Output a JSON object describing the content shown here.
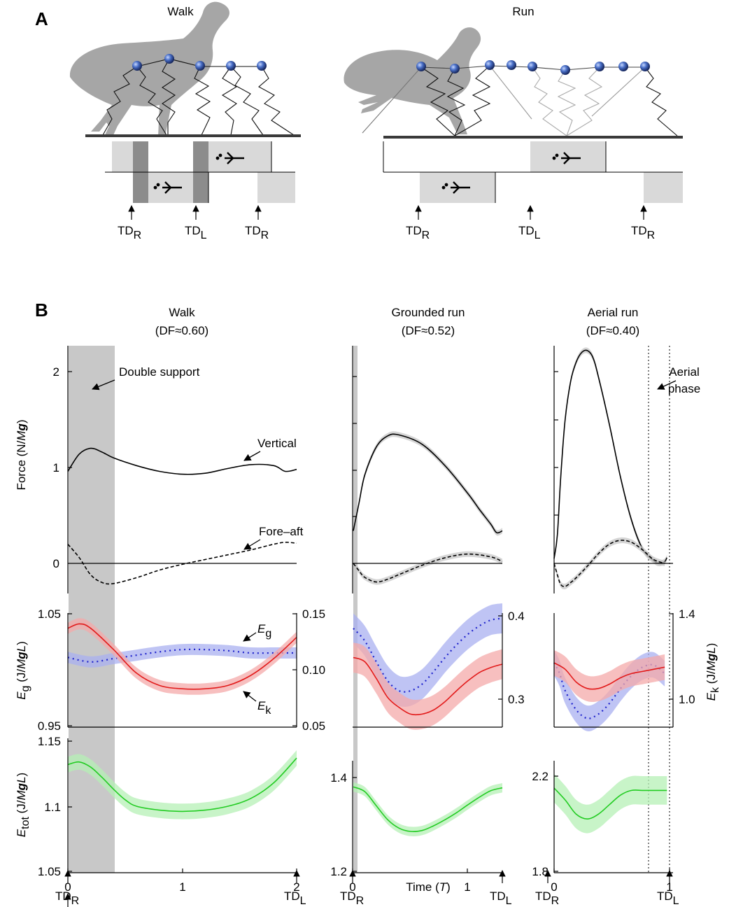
{
  "panel_a": {
    "label": "A",
    "walk": {
      "title": "Walk",
      "markers": [
        {
          "main": "TD",
          "sub": "R"
        },
        {
          "main": "TD",
          "sub": "L"
        },
        {
          "main": "TD",
          "sub": "R"
        }
      ]
    },
    "run": {
      "title": "Run",
      "markers": [
        {
          "main": "TD",
          "sub": "R"
        },
        {
          "main": "TD",
          "sub": "L"
        },
        {
          "main": "TD",
          "sub": "R"
        }
      ]
    }
  },
  "panel_b": {
    "label": "B",
    "columns": [
      {
        "title": "Walk",
        "subtitle": "(DF≈0.60)"
      },
      {
        "title": "Grounded run",
        "subtitle": "(DF≈0.52)"
      },
      {
        "title": "Aerial run",
        "subtitle": "(DF≈0.40)"
      }
    ],
    "annotations": {
      "double_support": "Double support",
      "vertical": "Vertical",
      "fore_aft": "Fore–aft",
      "aerial_phase_1": "Aerial",
      "aerial_phase_2": "phase",
      "eg_main": "E",
      "eg_sub": "g",
      "ek_main": "E",
      "ek_sub": "k"
    },
    "axis_labels": {
      "force": {
        "prefix": "Force (N/",
        "italic": "M",
        "bold_italic": "g",
        "suffix": ")"
      },
      "eg": {
        "main": "E",
        "sub": "g",
        "rest_prefix": " (J/",
        "italic": "M",
        "bold_italic": "g",
        "italic2": "L",
        "suffix": ")"
      },
      "ek": {
        "main": "E",
        "sub": "k",
        "rest_prefix": " (J/",
        "italic": "M",
        "bold_italic": "g",
        "italic2": "L",
        "suffix": ")"
      },
      "etot": {
        "main": "E",
        "sub": "tot",
        "rest_prefix": " (J/",
        "italic": "M",
        "bold_italic": "g",
        "italic2": "L",
        "suffix": ")"
      },
      "time": {
        "prefix": "Time (",
        "italic": "T",
        "suffix": ")"
      }
    },
    "bottom_markers": [
      {
        "main": "TD",
        "sub": "R"
      },
      {
        "main": "TD",
        "sub": "L"
      },
      {
        "main": "TD",
        "sub": "R"
      },
      {
        "main": "TD",
        "sub": "L"
      },
      {
        "main": "TD",
        "sub": "R"
      },
      {
        "main": "TD",
        "sub": "L"
      }
    ]
  },
  "colors": {
    "black": "#000000",
    "ek_red": "#e21b1b",
    "ek_band": "#f4a9a9",
    "eg_blue": "#1f23cc",
    "eg_band": "#aab0f0",
    "etot_green": "#22cc22",
    "etot_band": "#b6f0b6",
    "shade": "#c8c8c8",
    "silhouette": "#a6a6a6",
    "node": "#4a70c8"
  },
  "chart_data": [
    {
      "type": "line",
      "id": "walk_force",
      "ylabel": "Force (N/Mg)",
      "xlim": [
        0,
        2
      ],
      "ylim": [
        -0.2,
        2.3
      ],
      "yticks": [
        "0",
        "1",
        "2"
      ],
      "ytick_values": [
        0,
        1,
        2
      ],
      "x_range": [
        0,
        2
      ],
      "shaded_x": [
        0,
        0.4
      ],
      "series": [
        {
          "name": "Vertical",
          "style": "solid",
          "x": [
            0,
            0.1,
            0.2,
            0.3,
            0.4,
            0.6,
            0.8,
            1.0,
            1.2,
            1.4,
            1.6,
            1.8,
            1.9,
            2.0
          ],
          "y": [
            0.96,
            1.14,
            1.2,
            1.16,
            1.1,
            1.02,
            0.96,
            0.93,
            0.94,
            0.99,
            1.03,
            1.02,
            0.96,
            0.98
          ]
        },
        {
          "name": "Fore–aft",
          "style": "dashed",
          "x": [
            0,
            0.1,
            0.2,
            0.3,
            0.4,
            0.6,
            0.8,
            1.0,
            1.2,
            1.4,
            1.6,
            1.8,
            1.9,
            2.0
          ],
          "y": [
            0.2,
            0.06,
            -0.12,
            -0.2,
            -0.21,
            -0.15,
            -0.07,
            -0.01,
            0.04,
            0.09,
            0.14,
            0.2,
            0.22,
            0.21
          ]
        }
      ]
    },
    {
      "type": "line",
      "id": "grounded_force",
      "xlim": [
        0,
        1.3
      ],
      "ylim": [
        -0.2,
        2.3
      ],
      "x_range": [
        0,
        1.3
      ],
      "shaded_x": [
        0,
        0.03
      ],
      "series": [
        {
          "name": "Vertical",
          "style": "solid",
          "x": [
            0,
            0.05,
            0.1,
            0.2,
            0.3,
            0.4,
            0.6,
            0.8,
            1.0,
            1.1,
            1.2,
            1.25,
            1.3
          ],
          "y": [
            0.35,
            0.65,
            0.95,
            1.25,
            1.37,
            1.38,
            1.28,
            1.05,
            0.75,
            0.58,
            0.42,
            0.33,
            0.35
          ]
        },
        {
          "name": "Fore–aft",
          "style": "dashed",
          "x": [
            0,
            0.05,
            0.1,
            0.2,
            0.3,
            0.4,
            0.6,
            0.8,
            1.0,
            1.2,
            1.3
          ],
          "y": [
            0.0,
            -0.08,
            -0.15,
            -0.2,
            -0.17,
            -0.12,
            -0.02,
            0.06,
            0.1,
            0.07,
            0.02
          ]
        }
      ]
    },
    {
      "type": "line",
      "id": "aerial_force",
      "xlim": [
        0,
        1.05
      ],
      "ylim": [
        -0.2,
        2.3
      ],
      "x_range": [
        0,
        1.05
      ],
      "dotted_x": [
        0.82,
        1.0
      ],
      "series": [
        {
          "name": "Vertical",
          "style": "solid",
          "x": [
            0,
            0.03,
            0.06,
            0.1,
            0.15,
            0.2,
            0.25,
            0.3,
            0.35,
            0.4,
            0.5,
            0.6,
            0.7,
            0.8,
            0.9,
            0.95,
            1.0,
            1.02
          ],
          "y": [
            0.05,
            0.3,
            0.9,
            1.5,
            1.9,
            2.1,
            2.2,
            2.22,
            2.15,
            1.95,
            1.45,
            0.9,
            0.45,
            0.15,
            0.03,
            0.0,
            0.02,
            0.06
          ]
        },
        {
          "name": "Fore–aft",
          "style": "dashed",
          "x": [
            0,
            0.03,
            0.06,
            0.1,
            0.15,
            0.2,
            0.3,
            0.4,
            0.5,
            0.6,
            0.7,
            0.8,
            0.9,
            1.0
          ],
          "y": [
            0.0,
            -0.12,
            -0.22,
            -0.24,
            -0.2,
            -0.15,
            -0.03,
            0.1,
            0.2,
            0.24,
            0.22,
            0.14,
            0.04,
            0.0
          ]
        }
      ]
    },
    {
      "type": "line",
      "id": "walk_energy",
      "xlim": [
        0,
        2
      ],
      "ylim_left": [
        0.95,
        1.05
      ],
      "yticks_left": [
        "0.95",
        "1.05"
      ],
      "ytick_values_left": [
        0.95,
        1.05
      ],
      "ylim_right": [
        0.05,
        0.15
      ],
      "yticks_right": [
        "0.05",
        "0.10",
        "0.15"
      ],
      "ytick_values_right": [
        0.05,
        0.1,
        0.15
      ],
      "shaded_x": [
        0,
        0.4
      ],
      "series": [
        {
          "name": "Eg",
          "axis": "left",
          "style": "dotted",
          "band": 0.005,
          "x": [
            0,
            0.2,
            0.4,
            0.6,
            0.8,
            1.0,
            1.2,
            1.4,
            1.6,
            1.8,
            2.0
          ],
          "y": [
            1.011,
            1.007,
            1.01,
            1.013,
            1.016,
            1.018,
            1.018,
            1.017,
            1.015,
            1.015,
            1.015
          ]
        },
        {
          "name": "Ek",
          "axis": "right",
          "style": "solid",
          "band": 0.005,
          "x": [
            0,
            0.1,
            0.2,
            0.4,
            0.6,
            0.8,
            1.0,
            1.2,
            1.4,
            1.6,
            1.8,
            2.0
          ],
          "y": [
            0.137,
            0.141,
            0.137,
            0.118,
            0.097,
            0.086,
            0.083,
            0.083,
            0.086,
            0.095,
            0.11,
            0.129
          ]
        }
      ]
    },
    {
      "type": "line",
      "id": "grounded_energy",
      "xlim": [
        0,
        1.3
      ],
      "ylim_right": [
        0.24,
        0.41
      ],
      "yticks_right": [
        "0.3",
        "0.4"
      ],
      "ytick_values_right": [
        0.3,
        0.4
      ],
      "shaded_x": [
        0,
        0.03
      ],
      "series": [
        {
          "name": "Eg",
          "axis": "right",
          "style": "dotted",
          "band": 0.018,
          "x": [
            0,
            0.1,
            0.2,
            0.3,
            0.4,
            0.5,
            0.6,
            0.7,
            0.8,
            0.9,
            1.0,
            1.1,
            1.2,
            1.3
          ],
          "y": [
            0.385,
            0.37,
            0.345,
            0.322,
            0.31,
            0.31,
            0.318,
            0.333,
            0.35,
            0.365,
            0.378,
            0.388,
            0.395,
            0.397
          ]
        },
        {
          "name": "Ek",
          "axis": "right",
          "style": "solid",
          "band": 0.018,
          "x": [
            0,
            0.1,
            0.2,
            0.3,
            0.4,
            0.5,
            0.6,
            0.7,
            0.8,
            0.9,
            1.0,
            1.1,
            1.2,
            1.3
          ],
          "y": [
            0.35,
            0.345,
            0.325,
            0.302,
            0.29,
            0.282,
            0.282,
            0.287,
            0.297,
            0.31,
            0.322,
            0.332,
            0.338,
            0.342
          ]
        }
      ]
    },
    {
      "type": "line",
      "id": "aerial_energy",
      "ylabel_right": "Ek (J/MgL)",
      "xlim": [
        0,
        1.05
      ],
      "ylim_right": [
        0.82,
        1.4
      ],
      "yticks_right": [
        "1.0",
        "1.4"
      ],
      "ytick_values_right": [
        1.0,
        1.4
      ],
      "dotted_x": [
        0.82,
        1.0
      ],
      "series": [
        {
          "name": "Eg",
          "axis": "right",
          "style": "dotted",
          "band": 0.06,
          "x": [
            0,
            0.05,
            0.1,
            0.2,
            0.3,
            0.4,
            0.5,
            0.6,
            0.7,
            0.8,
            0.9,
            1.0
          ],
          "y": [
            1.17,
            1.12,
            1.04,
            0.95,
            0.91,
            0.93,
            0.98,
            1.05,
            1.11,
            1.15,
            1.16,
            1.12
          ]
        },
        {
          "name": "Ek",
          "axis": "right",
          "style": "solid",
          "band": 0.06,
          "x": [
            0,
            0.1,
            0.2,
            0.3,
            0.4,
            0.5,
            0.6,
            0.7,
            0.8,
            0.9,
            1.0
          ],
          "y": [
            1.17,
            1.14,
            1.08,
            1.05,
            1.05,
            1.07,
            1.1,
            1.12,
            1.13,
            1.14,
            1.15
          ]
        }
      ]
    },
    {
      "type": "line",
      "id": "walk_etot",
      "xlim": [
        0,
        2
      ],
      "ylim": [
        1.05,
        1.15
      ],
      "yticks": [
        "1.05",
        "1.1",
        "1.15"
      ],
      "ytick_values": [
        1.05,
        1.1,
        1.15
      ],
      "xticks": [
        "0",
        "1",
        "2"
      ],
      "xtick_values": [
        0,
        1,
        2
      ],
      "shaded_x": [
        0,
        0.4
      ],
      "series": [
        {
          "name": "Etot",
          "style": "solid",
          "band": 0.006,
          "x": [
            0,
            0.1,
            0.2,
            0.3,
            0.4,
            0.5,
            0.6,
            0.8,
            1.0,
            1.2,
            1.4,
            1.6,
            1.8,
            2.0
          ],
          "y": [
            1.132,
            1.134,
            1.13,
            1.122,
            1.113,
            1.105,
            1.1,
            1.097,
            1.096,
            1.097,
            1.1,
            1.106,
            1.118,
            1.137
          ]
        }
      ]
    },
    {
      "type": "line",
      "id": "grounded_etot",
      "xlim": [
        0,
        1.3
      ],
      "ylim": [
        1.2,
        1.5
      ],
      "yticks": [
        "1.2",
        "1.4"
      ],
      "ytick_values": [
        1.2,
        1.4
      ],
      "xticks": [
        "0",
        "1"
      ],
      "xtick_values": [
        0,
        1
      ],
      "xlabel": "Time (T)",
      "shaded_x": [
        0,
        0.03
      ],
      "series": [
        {
          "name": "Etot",
          "style": "solid",
          "band": 0.01,
          "x": [
            0,
            0.1,
            0.2,
            0.3,
            0.4,
            0.5,
            0.6,
            0.7,
            0.8,
            0.9,
            1.0,
            1.1,
            1.2,
            1.3
          ],
          "y": [
            1.38,
            1.37,
            1.34,
            1.31,
            1.292,
            1.285,
            1.287,
            1.297,
            1.31,
            1.325,
            1.342,
            1.358,
            1.372,
            1.378
          ]
        }
      ]
    },
    {
      "type": "line",
      "id": "aerial_etot",
      "xlim": [
        0,
        1.05
      ],
      "ylim": [
        1.8,
        2.3
      ],
      "yticks": [
        "1.8",
        "2.2"
      ],
      "ytick_values": [
        1.8,
        2.2
      ],
      "xticks": [
        "0",
        "1"
      ],
      "xtick_values": [
        0,
        1
      ],
      "dotted_x": [
        0.82,
        1.0
      ],
      "series": [
        {
          "name": "Etot",
          "style": "solid",
          "band": 0.06,
          "x": [
            0,
            0.1,
            0.2,
            0.3,
            0.4,
            0.5,
            0.6,
            0.7,
            0.8,
            0.9,
            1.0,
            1.02
          ],
          "y": [
            2.15,
            2.1,
            2.04,
            2.02,
            2.04,
            2.08,
            2.12,
            2.14,
            2.14,
            2.14,
            2.14,
            2.14
          ]
        }
      ]
    }
  ]
}
